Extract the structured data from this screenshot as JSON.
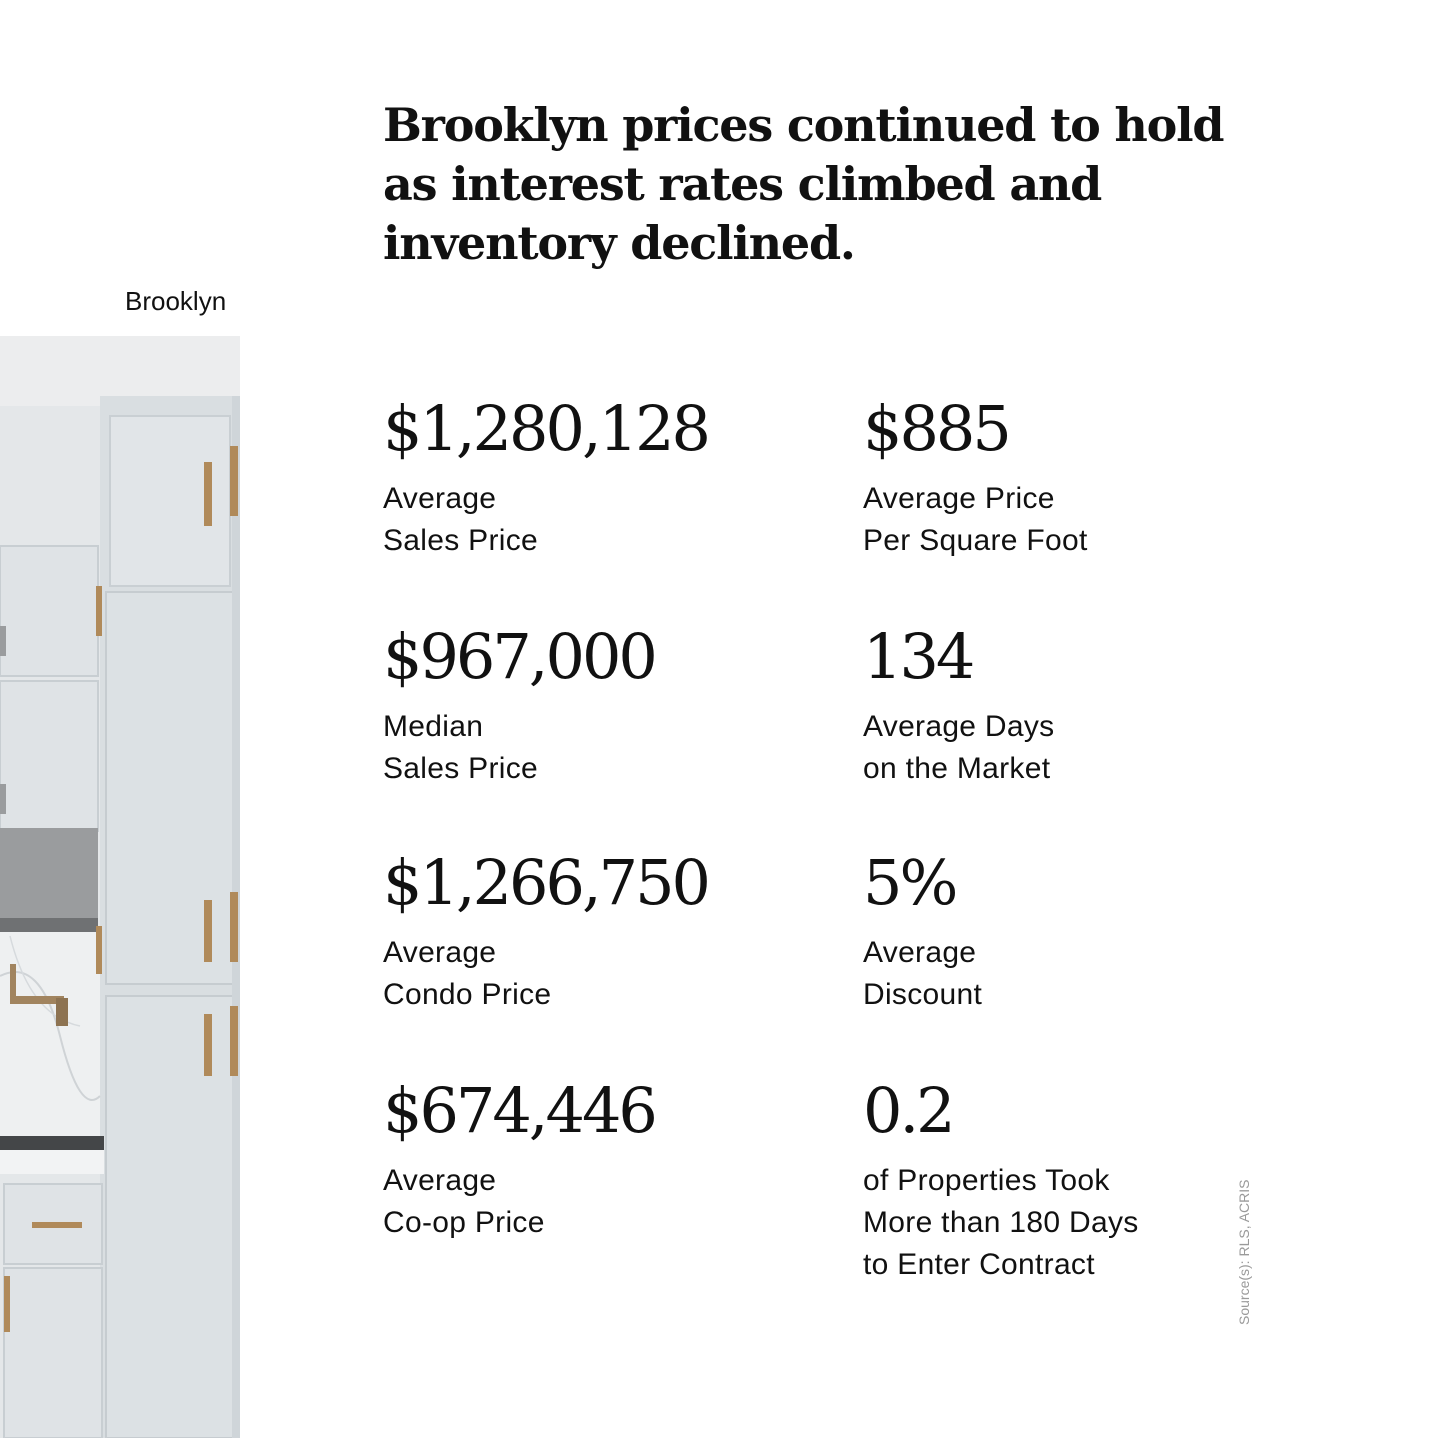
{
  "headline": {
    "line1": "Brooklyn prices continued to hold",
    "line2": "as interest rates climbed and",
    "line3": "inventory declined."
  },
  "area_label": "Brooklyn",
  "stats": [
    {
      "value": "$1,280,128",
      "label_line1": "Average",
      "label_line2": "Sales Price"
    },
    {
      "value": "$885",
      "label_line1": "Average Price",
      "label_line2": "Per Square Foot"
    },
    {
      "value": "$967,000",
      "label_line1": "Median",
      "label_line2": "Sales Price"
    },
    {
      "value": "134",
      "label_line1": "Average Days",
      "label_line2": "on the Market"
    },
    {
      "value": "$1,266,750",
      "label_line1": "Average",
      "label_line2": "Condo Price"
    },
    {
      "value": "5%",
      "label_line1": "Average",
      "label_line2": "Discount"
    },
    {
      "value": "$674,446",
      "label_line1": "Average",
      "label_line2": "Co-op Price"
    },
    {
      "value": "0.2",
      "label_line1": "of Properties Took",
      "label_line2": "More than 180 Days",
      "label_line3": "to Enter Contract"
    }
  ],
  "source": "Source(s): RLS, ACRIS",
  "colors": {
    "text": "#111111",
    "source_text": "#9a9a9a",
    "cabinet": "#dde2e5",
    "brass": "#b08a5a"
  }
}
